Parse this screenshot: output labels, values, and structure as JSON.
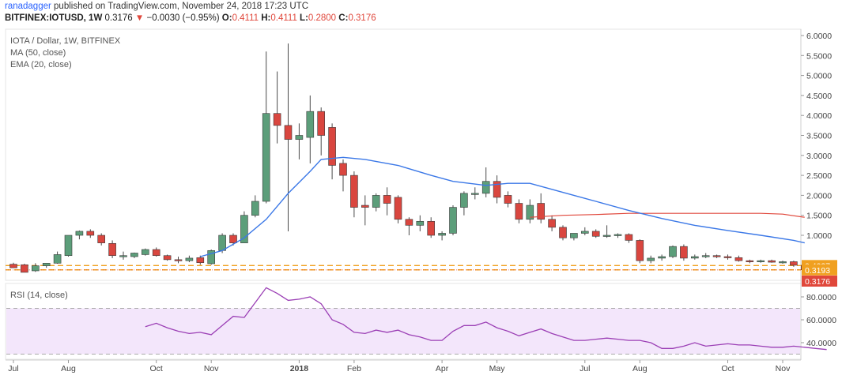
{
  "header": {
    "user": "ranadagger",
    "published": "published on TradingView.com, November 24, 2018 17:23 UTC"
  },
  "symbol_line": {
    "symbol": "BITFINEX:IOTUSD, 1W",
    "close": "0.3176",
    "arrow": "▼",
    "change": "−0.0030 (−0.95%)",
    "o_label": "O:",
    "o_value": "0.4111",
    "h_label": "H:",
    "h_value": "0.4111",
    "l_label": "L:",
    "l_value": "0.2800",
    "c_label": "C:",
    "c_value": "0.3176"
  },
  "chart_data": [
    {
      "type": "candlestick",
      "title": "IOTA / Dollar, 1W, BITFINEX",
      "indicators": [
        "MA (50, close)",
        "EMA (20, close)"
      ],
      "ylim": [
        0,
        6
      ],
      "y_ticks": [
        "6.0000",
        "5.5000",
        "5.0000",
        "4.5000",
        "4.0000",
        "3.5000",
        "3.0000",
        "2.5000",
        "2.0000",
        "1.5000",
        "1.0000"
      ],
      "x_labels": [
        {
          "label": "Jul",
          "i": 0
        },
        {
          "label": "Aug",
          "i": 5
        },
        {
          "label": "Oct",
          "i": 13
        },
        {
          "label": "Nov",
          "i": 18
        },
        {
          "label": "2018",
          "i": 26,
          "bold": true
        },
        {
          "label": "Feb",
          "i": 31
        },
        {
          "label": "Apr",
          "i": 39
        },
        {
          "label": "May",
          "i": 44
        },
        {
          "label": "Jul",
          "i": 52
        },
        {
          "label": "Aug",
          "i": 57
        },
        {
          "label": "Oct",
          "i": 65
        },
        {
          "label": "Nov",
          "i": 70
        }
      ],
      "price_labels": [
        {
          "value": "0.4037",
          "y": 0.4037,
          "color": "#f0a020"
        },
        {
          "value": "0.3193",
          "y": 0.3193,
          "color": "#f0a020"
        },
        {
          "value": "0.3176",
          "y": 0.2,
          "color": "#e0473b"
        }
      ],
      "support_lines": [
        0.4037,
        0.3193
      ],
      "candles": [
        [
          0.43,
          0.46,
          0.38,
          0.36
        ],
        [
          0.42,
          0.44,
          0.28,
          0.27
        ],
        [
          0.3,
          0.45,
          0.28,
          0.4
        ],
        [
          0.4,
          0.43,
          0.36,
          0.45
        ],
        [
          0.45,
          0.68,
          0.44,
          0.62
        ],
        [
          0.6,
          1.0,
          0.58,
          1.0
        ],
        [
          1.0,
          1.12,
          0.92,
          1.1
        ],
        [
          1.1,
          1.15,
          0.95,
          1.0
        ],
        [
          1.0,
          1.05,
          0.8,
          0.85
        ],
        [
          0.84,
          0.9,
          0.55,
          0.6
        ],
        [
          0.6,
          0.68,
          0.52,
          0.6
        ],
        [
          0.58,
          0.66,
          0.55,
          0.65
        ],
        [
          0.62,
          0.74,
          0.6,
          0.72
        ],
        [
          0.72,
          0.76,
          0.58,
          0.6
        ],
        [
          0.6,
          0.62,
          0.5,
          0.52
        ],
        [
          0.52,
          0.58,
          0.45,
          0.5
        ],
        [
          0.5,
          0.6,
          0.47,
          0.55
        ],
        [
          0.56,
          0.6,
          0.42,
          0.46
        ],
        [
          0.44,
          0.72,
          0.42,
          0.7
        ],
        [
          0.7,
          1.05,
          0.65,
          1.0
        ],
        [
          1.0,
          1.05,
          0.8,
          0.85
        ],
        [
          0.85,
          1.6,
          0.85,
          1.5
        ],
        [
          1.5,
          2.0,
          1.45,
          1.85
        ],
        [
          1.85,
          5.6,
          1.8,
          4.05
        ],
        [
          4.05,
          5.1,
          3.3,
          3.75
        ],
        [
          3.75,
          5.8,
          1.1,
          3.4
        ],
        [
          3.4,
          3.8,
          2.9,
          3.5
        ],
        [
          3.45,
          4.5,
          2.8,
          4.1
        ],
        [
          4.1,
          4.2,
          3.0,
          3.5
        ],
        [
          3.7,
          3.8,
          2.4,
          2.75
        ],
        [
          2.8,
          2.9,
          2.1,
          2.5
        ],
        [
          2.5,
          2.6,
          1.45,
          1.7
        ],
        [
          1.75,
          2.0,
          1.25,
          1.7
        ],
        [
          1.7,
          2.05,
          1.6,
          2.0
        ],
        [
          2.0,
          2.2,
          1.5,
          1.8
        ],
        [
          1.95,
          2.0,
          1.3,
          1.4
        ],
        [
          1.4,
          1.45,
          1.0,
          1.25
        ],
        [
          1.25,
          1.5,
          1.1,
          1.35
        ],
        [
          1.35,
          1.45,
          0.95,
          1.0
        ],
        [
          1.0,
          1.1,
          0.9,
          1.05
        ],
        [
          1.05,
          1.75,
          1.0,
          1.7
        ],
        [
          1.7,
          2.1,
          1.5,
          2.05
        ],
        [
          2.05,
          2.2,
          1.9,
          2.05
        ],
        [
          2.05,
          2.7,
          1.95,
          2.35
        ],
        [
          2.35,
          2.5,
          1.8,
          1.95
        ],
        [
          2.0,
          2.1,
          1.7,
          1.8
        ],
        [
          1.8,
          1.9,
          1.3,
          1.4
        ],
        [
          1.4,
          1.9,
          1.3,
          1.75
        ],
        [
          1.8,
          2.05,
          1.3,
          1.4
        ],
        [
          1.4,
          1.5,
          1.1,
          1.2
        ],
        [
          1.2,
          1.25,
          0.9,
          0.95
        ],
        [
          0.95,
          1.05,
          0.9,
          1.05
        ],
        [
          1.05,
          1.2,
          1.0,
          1.1
        ],
        [
          1.1,
          1.15,
          0.95,
          0.98
        ],
        [
          0.98,
          1.25,
          0.95,
          1.0
        ],
        [
          1.0,
          1.05,
          0.95,
          1.02
        ],
        [
          1.02,
          1.05,
          0.85,
          0.9
        ],
        [
          0.9,
          0.92,
          0.45,
          0.5
        ],
        [
          0.5,
          0.6,
          0.45,
          0.55
        ],
        [
          0.55,
          0.62,
          0.5,
          0.58
        ],
        [
          0.58,
          0.8,
          0.55,
          0.78
        ],
        [
          0.78,
          0.82,
          0.5,
          0.55
        ],
        [
          0.55,
          0.62,
          0.52,
          0.58
        ],
        [
          0.58,
          0.65,
          0.55,
          0.6
        ],
        [
          0.6,
          0.62,
          0.55,
          0.58
        ],
        [
          0.58,
          0.62,
          0.52,
          0.56
        ],
        [
          0.56,
          0.6,
          0.48,
          0.5
        ],
        [
          0.5,
          0.52,
          0.45,
          0.48
        ],
        [
          0.48,
          0.52,
          0.46,
          0.5
        ],
        [
          0.5,
          0.52,
          0.46,
          0.47
        ],
        [
          0.47,
          0.5,
          0.44,
          0.48
        ],
        [
          0.48,
          0.5,
          0.38,
          0.41
        ],
        [
          0.41,
          0.41,
          0.28,
          0.32
        ]
      ],
      "ema": [
        [
          17,
          0.58
        ],
        [
          19,
          0.7
        ],
        [
          21,
          0.95
        ],
        [
          23,
          1.4
        ],
        [
          25,
          2.05
        ],
        [
          27,
          2.6
        ],
        [
          28,
          2.9
        ],
        [
          30,
          2.95
        ],
        [
          32,
          2.9
        ],
        [
          35,
          2.75
        ],
        [
          38,
          2.5
        ],
        [
          40,
          2.35
        ],
        [
          43,
          2.25
        ],
        [
          45,
          2.3
        ],
        [
          47,
          2.3
        ],
        [
          49,
          2.15
        ],
        [
          51,
          2.0
        ],
        [
          53,
          1.85
        ],
        [
          56,
          1.62
        ],
        [
          59,
          1.42
        ],
        [
          62,
          1.25
        ],
        [
          65,
          1.12
        ],
        [
          68,
          1.0
        ],
        [
          71,
          0.9
        ],
        [
          72,
          0.85
        ]
      ],
      "ma": [
        [
          47,
          1.45
        ],
        [
          50,
          1.5
        ],
        [
          53,
          1.52
        ],
        [
          56,
          1.55
        ],
        [
          60,
          1.55
        ],
        [
          64,
          1.55
        ],
        [
          68,
          1.55
        ],
        [
          70,
          1.53
        ],
        [
          72,
          1.45
        ]
      ]
    },
    {
      "type": "line",
      "title": "RSI (14, close)",
      "ylim": [
        20,
        100
      ],
      "y_ticks": [
        "80.0000",
        "60.0000",
        "40.0000"
      ],
      "band": [
        30,
        70
      ],
      "x_start": 12,
      "values": [
        54,
        57,
        53,
        50,
        48,
        49,
        47,
        55,
        63,
        62,
        75,
        88,
        83,
        77,
        78,
        80,
        74,
        60,
        56,
        49,
        48,
        51,
        49,
        51,
        47,
        45,
        42,
        42,
        50,
        55,
        55,
        58,
        53,
        50,
        46,
        49,
        52,
        48,
        45,
        42,
        42,
        43,
        44,
        43,
        42,
        42,
        40,
        35,
        35,
        37,
        40,
        37,
        38,
        39,
        38,
        38,
        37,
        36,
        36,
        37,
        36,
        35,
        34
      ]
    }
  ]
}
